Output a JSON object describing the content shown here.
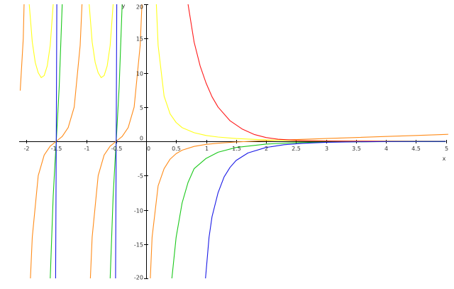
{
  "chart_data": {
    "type": "line",
    "title": "",
    "xlabel": "x",
    "ylabel": "y",
    "xlim": [
      -2.05,
      5.05
    ],
    "ylim": [
      -20,
      20
    ],
    "grid": false,
    "legend": "none",
    "x_ticks": [
      -2,
      -1.5,
      -1,
      -0.5,
      0,
      0.5,
      1,
      1.5,
      2,
      2.5,
      3,
      3.5,
      4,
      4.5,
      5
    ],
    "x_tick_labels": [
      "-2",
      "-1.5",
      "-1",
      "-0.5",
      "0",
      "0.5",
      "1",
      "1.5",
      "2",
      "2.5",
      "3",
      "3.5",
      "4",
      "4.5",
      "5"
    ],
    "y_ticks": [
      -20,
      -15,
      -10,
      -5,
      0,
      5,
      10,
      15,
      20
    ],
    "y_tick_labels": [
      "-20",
      "-15",
      "-10",
      "-5",
      "0",
      "5",
      "10",
      "15",
      "20"
    ],
    "series": [
      {
        "color": "#ff8c1a",
        "segments": [
          {
            "x": [
              -2.1,
              -2.05,
              -2.02,
              -2.0
            ],
            "y": [
              7.4,
              15,
              26,
              40
            ]
          },
          {
            "x": [
              -1.93,
              -1.9,
              -1.8,
              -1.7,
              -1.6,
              -1.5,
              -1.4,
              -1.3,
              -1.2,
              -1.1,
              -1.07
            ],
            "y": [
              -20,
              -14,
              -5.0,
              -2.0,
              -0.7,
              0,
              0.7,
              2.0,
              5.0,
              14,
              20
            ]
          },
          {
            "x": [
              -0.93,
              -0.9,
              -0.8,
              -0.7,
              -0.6,
              -0.5,
              -0.4,
              -0.3,
              -0.2,
              -0.1,
              -0.07
            ],
            "y": [
              -20,
              -14,
              -5.0,
              -2.0,
              -0.7,
              0,
              0.7,
              2.0,
              5.0,
              14,
              20
            ]
          },
          {
            "x": [
              0.07,
              0.1,
              0.2,
              0.3,
              0.4,
              0.5,
              0.6,
              0.8,
              1.0,
              1.2,
              1.5,
              2.0,
              2.5,
              3.0,
              3.5,
              4.0,
              4.5,
              5.0,
              5.1
            ],
            "y": [
              -20,
              -14,
              -6.5,
              -4.0,
              -2.6,
              -1.8,
              -1.3,
              -0.75,
              -0.45,
              -0.28,
              -0.1,
              0.1,
              0.25,
              0.4,
              0.55,
              0.7,
              0.85,
              1.0,
              1.05
            ]
          }
        ]
      },
      {
        "color": "#ffff1a",
        "segments": [
          {
            "x": [
              -1.95,
              -1.9,
              -1.85,
              -1.8,
              -1.75,
              -1.7,
              -1.65,
              -1.6,
              -1.55
            ],
            "y": [
              20,
              14.5,
              11.5,
              10.0,
              9.3,
              9.6,
              11.0,
              14,
              20
            ]
          },
          {
            "x": [
              -0.95,
              -0.9,
              -0.85,
              -0.8,
              -0.75,
              -0.7,
              -0.65,
              -0.6,
              -0.55
            ],
            "y": [
              20,
              14.5,
              11.5,
              10.0,
              9.3,
              9.6,
              11.0,
              14,
              20
            ]
          },
          {
            "x": [
              0.17,
              0.2,
              0.3,
              0.4,
              0.5,
              0.6,
              0.8,
              1.0,
              1.2,
              1.5,
              2.0,
              2.5,
              3.0,
              3.5,
              4.0,
              5.0
            ],
            "y": [
              20,
              14,
              6.6,
              4.0,
              2.75,
              2.0,
              1.25,
              0.85,
              0.62,
              0.4,
              0.2,
              0.1,
              0.06,
              0.04,
              0.03,
              0.02
            ]
          }
        ]
      },
      {
        "color": "#ff1a1a",
        "segments": [
          {
            "x": [
              0.7,
              0.8,
              0.9,
              1.0,
              1.1,
              1.2,
              1.4,
              1.6,
              1.8,
              2.0,
              2.2,
              2.5,
              3.0,
              3.5,
              4.0,
              5.0
            ],
            "y": [
              20,
              14.5,
              11,
              8.5,
              6.5,
              5.0,
              3.0,
              1.8,
              1.0,
              0.55,
              0.3,
              0.15,
              0.05,
              0.02,
              0.01,
              0.0
            ]
          }
        ]
      },
      {
        "color": "#1ac81a",
        "segments": [
          {
            "x": [
              -1.6,
              -1.55,
              -1.52,
              -1.5,
              -1.48,
              -1.45,
              -1.4
            ],
            "y": [
              -20,
              -8,
              -3,
              0,
              3,
              8,
              20
            ]
          },
          {
            "x": [
              -0.6,
              -0.55,
              -0.52,
              -0.5,
              -0.48,
              -0.45,
              -0.4
            ],
            "y": [
              -20,
              -8,
              -3,
              0,
              3,
              8,
              20
            ]
          },
          {
            "x": [
              0.43,
              0.5,
              0.6,
              0.7,
              0.8,
              1.0,
              1.2,
              1.5,
              2.0,
              2.5,
              3.0,
              4.0,
              5.0
            ],
            "y": [
              -20,
              -14,
              -9,
              -6,
              -4,
              -2.5,
              -1.6,
              -0.9,
              -0.4,
              -0.2,
              -0.1,
              -0.04,
              -0.02
            ]
          }
        ]
      },
      {
        "color": "#1a1ae6",
        "segments": [
          {
            "x": [
              -1.51,
              -1.5,
              -1.49
            ],
            "y": [
              -20,
              0,
              20
            ]
          },
          {
            "x": [
              -0.51,
              -0.5,
              -0.49
            ],
            "y": [
              -20,
              0,
              20
            ]
          },
          {
            "x": [
              0.99,
              1.05,
              1.1,
              1.2,
              1.3,
              1.4,
              1.5,
              1.7,
              2.0,
              2.3,
              2.6,
              3.0,
              3.5,
              4.0,
              5.0
            ],
            "y": [
              -20,
              -14,
              -11,
              -7.5,
              -5.2,
              -3.8,
              -2.8,
              -1.7,
              -0.9,
              -0.5,
              -0.3,
              -0.15,
              -0.07,
              -0.03,
              -0.01
            ]
          }
        ]
      }
    ]
  }
}
